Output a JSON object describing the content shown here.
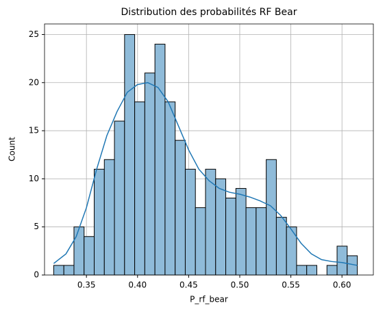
{
  "chart_data": {
    "type": "histogram",
    "title": "Distribution des probabilités RF Bear",
    "x_label": "P_rf_bear",
    "y_label": "Count",
    "bins": [
      0.318,
      0.3279,
      0.3378,
      0.3477,
      0.3576,
      0.3675,
      0.3774,
      0.3873,
      0.3972,
      0.4071,
      0.417,
      0.4269,
      0.4368,
      0.4467,
      0.4566,
      0.4665,
      0.4764,
      0.4863,
      0.4962,
      0.5061,
      0.516,
      0.5259,
      0.5358,
      0.5457,
      0.5556,
      0.5655,
      0.5754,
      0.5853,
      0.5952,
      0.6051,
      0.615
    ],
    "values": [
      1,
      1,
      5,
      4,
      11,
      12,
      16,
      25,
      18,
      21,
      24,
      18,
      14,
      11,
      7,
      11,
      10,
      8,
      9,
      7,
      7,
      12,
      6,
      5,
      1,
      1,
      0,
      1,
      3,
      2
    ],
    "color": "#8fbbd9",
    "edgecolor": "#000000",
    "kde": {
      "color": "#1f77b4",
      "x": [
        0.318,
        0.33,
        0.34,
        0.35,
        0.36,
        0.37,
        0.38,
        0.39,
        0.4,
        0.41,
        0.42,
        0.43,
        0.44,
        0.45,
        0.46,
        0.47,
        0.48,
        0.49,
        0.5,
        0.51,
        0.52,
        0.53,
        0.54,
        0.55,
        0.56,
        0.57,
        0.58,
        0.59,
        0.6,
        0.615
      ],
      "values": [
        1.2,
        2.2,
        4,
        7,
        11,
        14.5,
        17,
        19,
        19.8,
        20,
        19.5,
        18,
        15.5,
        13,
        11,
        9.8,
        9,
        8.6,
        8.4,
        8.1,
        7.7,
        7.2,
        6.2,
        4.8,
        3.3,
        2.2,
        1.6,
        1.4,
        1.3,
        1.0
      ]
    },
    "xlim": [
      0.309,
      0.6307
    ],
    "xticks": [
      0.35,
      {
        "value": 0.4,
        "label": "0.40"
      },
      0.45,
      {
        "value": 0.5,
        "label": "0.50"
      },
      0.55,
      {
        "value": 0.6,
        "label": "0.60"
      }
    ],
    "ylim": [
      0,
      26.1
    ],
    "yticks": [
      0,
      5,
      10,
      15,
      20,
      25
    ],
    "grid": true
  }
}
